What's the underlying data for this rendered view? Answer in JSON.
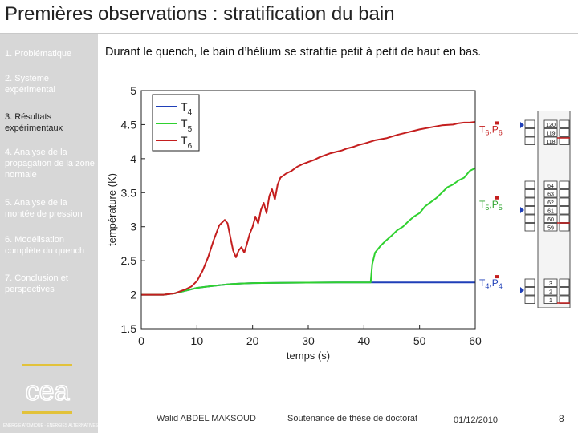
{
  "slide": {
    "title": "Premières observations : stratification du bain",
    "subtitle": "Durant le quench, le bain d’hélium se stratifie petit à petit de haut en bas."
  },
  "sidebar": {
    "items": [
      {
        "label": "1. Problématique",
        "active": false
      },
      {
        "label": "2. Système expérimental",
        "active": false
      },
      {
        "label": "3. Résultats expérimentaux",
        "active": true
      },
      {
        "label": "4. Analyse de la propagation de la zone normale",
        "active": false
      },
      {
        "label": "5. Analyse de la montée de pression",
        "active": false
      },
      {
        "label": "6. Modélisation complète du quench",
        "active": false
      },
      {
        "label": "7. Conclusion et perspectives",
        "active": false
      }
    ],
    "logo_text": "cea",
    "footer": "ÉNERGIE ATOMIQUE · ÉNERGIES ALTERNATIVES"
  },
  "chart_data": {
    "type": "line",
    "xlabel": "temps (s)",
    "ylabel": "température (K)",
    "xlim": [
      0,
      60
    ],
    "ylim": [
      1.5,
      5
    ],
    "xticks": [
      "0",
      "10",
      "20",
      "30",
      "40",
      "50",
      "60"
    ],
    "yticks": [
      "1.5",
      "2",
      "2.5",
      "3",
      "3.5",
      "4",
      "4.5",
      "5"
    ],
    "legend": [
      {
        "label": "T",
        "sub": "4"
      },
      {
        "label": "T",
        "sub": "5"
      },
      {
        "label": "T",
        "sub": "6"
      }
    ],
    "series": [
      {
        "name": "T4",
        "color": "#1f3fb8",
        "x": [
          0,
          4,
          6,
          8,
          10,
          12,
          14,
          16,
          18,
          20,
          25,
          30,
          35,
          40,
          45,
          50,
          55,
          60
        ],
        "y": [
          2.0,
          2.0,
          2.02,
          2.06,
          2.1,
          2.12,
          2.14,
          2.155,
          2.165,
          2.17,
          2.175,
          2.178,
          2.18,
          2.18,
          2.18,
          2.18,
          2.18,
          2.18
        ]
      },
      {
        "name": "T5",
        "color": "#2fd12f",
        "x": [
          0,
          4,
          6,
          8,
          10,
          12,
          14,
          16,
          18,
          20,
          25,
          30,
          35,
          40,
          41.2,
          41.5,
          42,
          43,
          44,
          45,
          46,
          47,
          48,
          49,
          50,
          51,
          52,
          53,
          54,
          55,
          56,
          57,
          58,
          59,
          60
        ],
        "y": [
          2.0,
          2.0,
          2.02,
          2.06,
          2.1,
          2.12,
          2.14,
          2.155,
          2.165,
          2.17,
          2.175,
          2.178,
          2.18,
          2.18,
          2.18,
          2.45,
          2.62,
          2.72,
          2.8,
          2.87,
          2.95,
          3.0,
          3.08,
          3.15,
          3.2,
          3.3,
          3.36,
          3.42,
          3.5,
          3.58,
          3.62,
          3.68,
          3.72,
          3.82,
          3.86
        ]
      },
      {
        "name": "T6",
        "color": "#c41e1e",
        "x": [
          0,
          4,
          6,
          7,
          8,
          9,
          10,
          11,
          12,
          13,
          14,
          15,
          15.5,
          16,
          16.5,
          17,
          17.5,
          18,
          18.5,
          19,
          19.5,
          20,
          20.5,
          21,
          21.5,
          22,
          22.5,
          23,
          23.5,
          24,
          24.5,
          25,
          26,
          27,
          28,
          29,
          30,
          31,
          32,
          33,
          34,
          35,
          36,
          37,
          38,
          39,
          40,
          42,
          44,
          46,
          48,
          50,
          52,
          54,
          56,
          57,
          58,
          59,
          60
        ],
        "y": [
          2.0,
          2.0,
          2.02,
          2.05,
          2.08,
          2.12,
          2.2,
          2.35,
          2.55,
          2.8,
          3.02,
          3.1,
          3.05,
          2.85,
          2.65,
          2.55,
          2.65,
          2.7,
          2.62,
          2.75,
          2.9,
          3.0,
          3.15,
          3.05,
          3.25,
          3.35,
          3.2,
          3.45,
          3.55,
          3.4,
          3.62,
          3.72,
          3.78,
          3.82,
          3.88,
          3.92,
          3.95,
          3.98,
          4.02,
          4.05,
          4.08,
          4.1,
          4.12,
          4.15,
          4.17,
          4.2,
          4.22,
          4.27,
          4.3,
          4.35,
          4.39,
          4.43,
          4.46,
          4.49,
          4.5,
          4.52,
          4.53,
          4.53,
          4.54
        ]
      }
    ],
    "annotations": [
      {
        "text": "T",
        "sub": "6",
        "text2": ",P",
        "sub2": "6"
      },
      {
        "text": "T",
        "sub": "5",
        "text2": ",P",
        "sub2": "5"
      },
      {
        "text": "T",
        "sub": "4",
        "text2": ",P",
        "sub2": "4"
      }
    ]
  },
  "sensor_stack": {
    "groups": [
      {
        "labels": [
          "120",
          "119",
          "118"
        ]
      },
      {
        "labels": [
          "64",
          "63",
          "62",
          "61",
          "60",
          "59"
        ]
      },
      {
        "labels": [
          "3",
          "2",
          "1"
        ]
      }
    ]
  },
  "footer": {
    "author": "Walid ABDEL MAKSOUD",
    "event": "Soutenance de thèse de doctorat",
    "date": "01/12/2010",
    "page": "8"
  }
}
